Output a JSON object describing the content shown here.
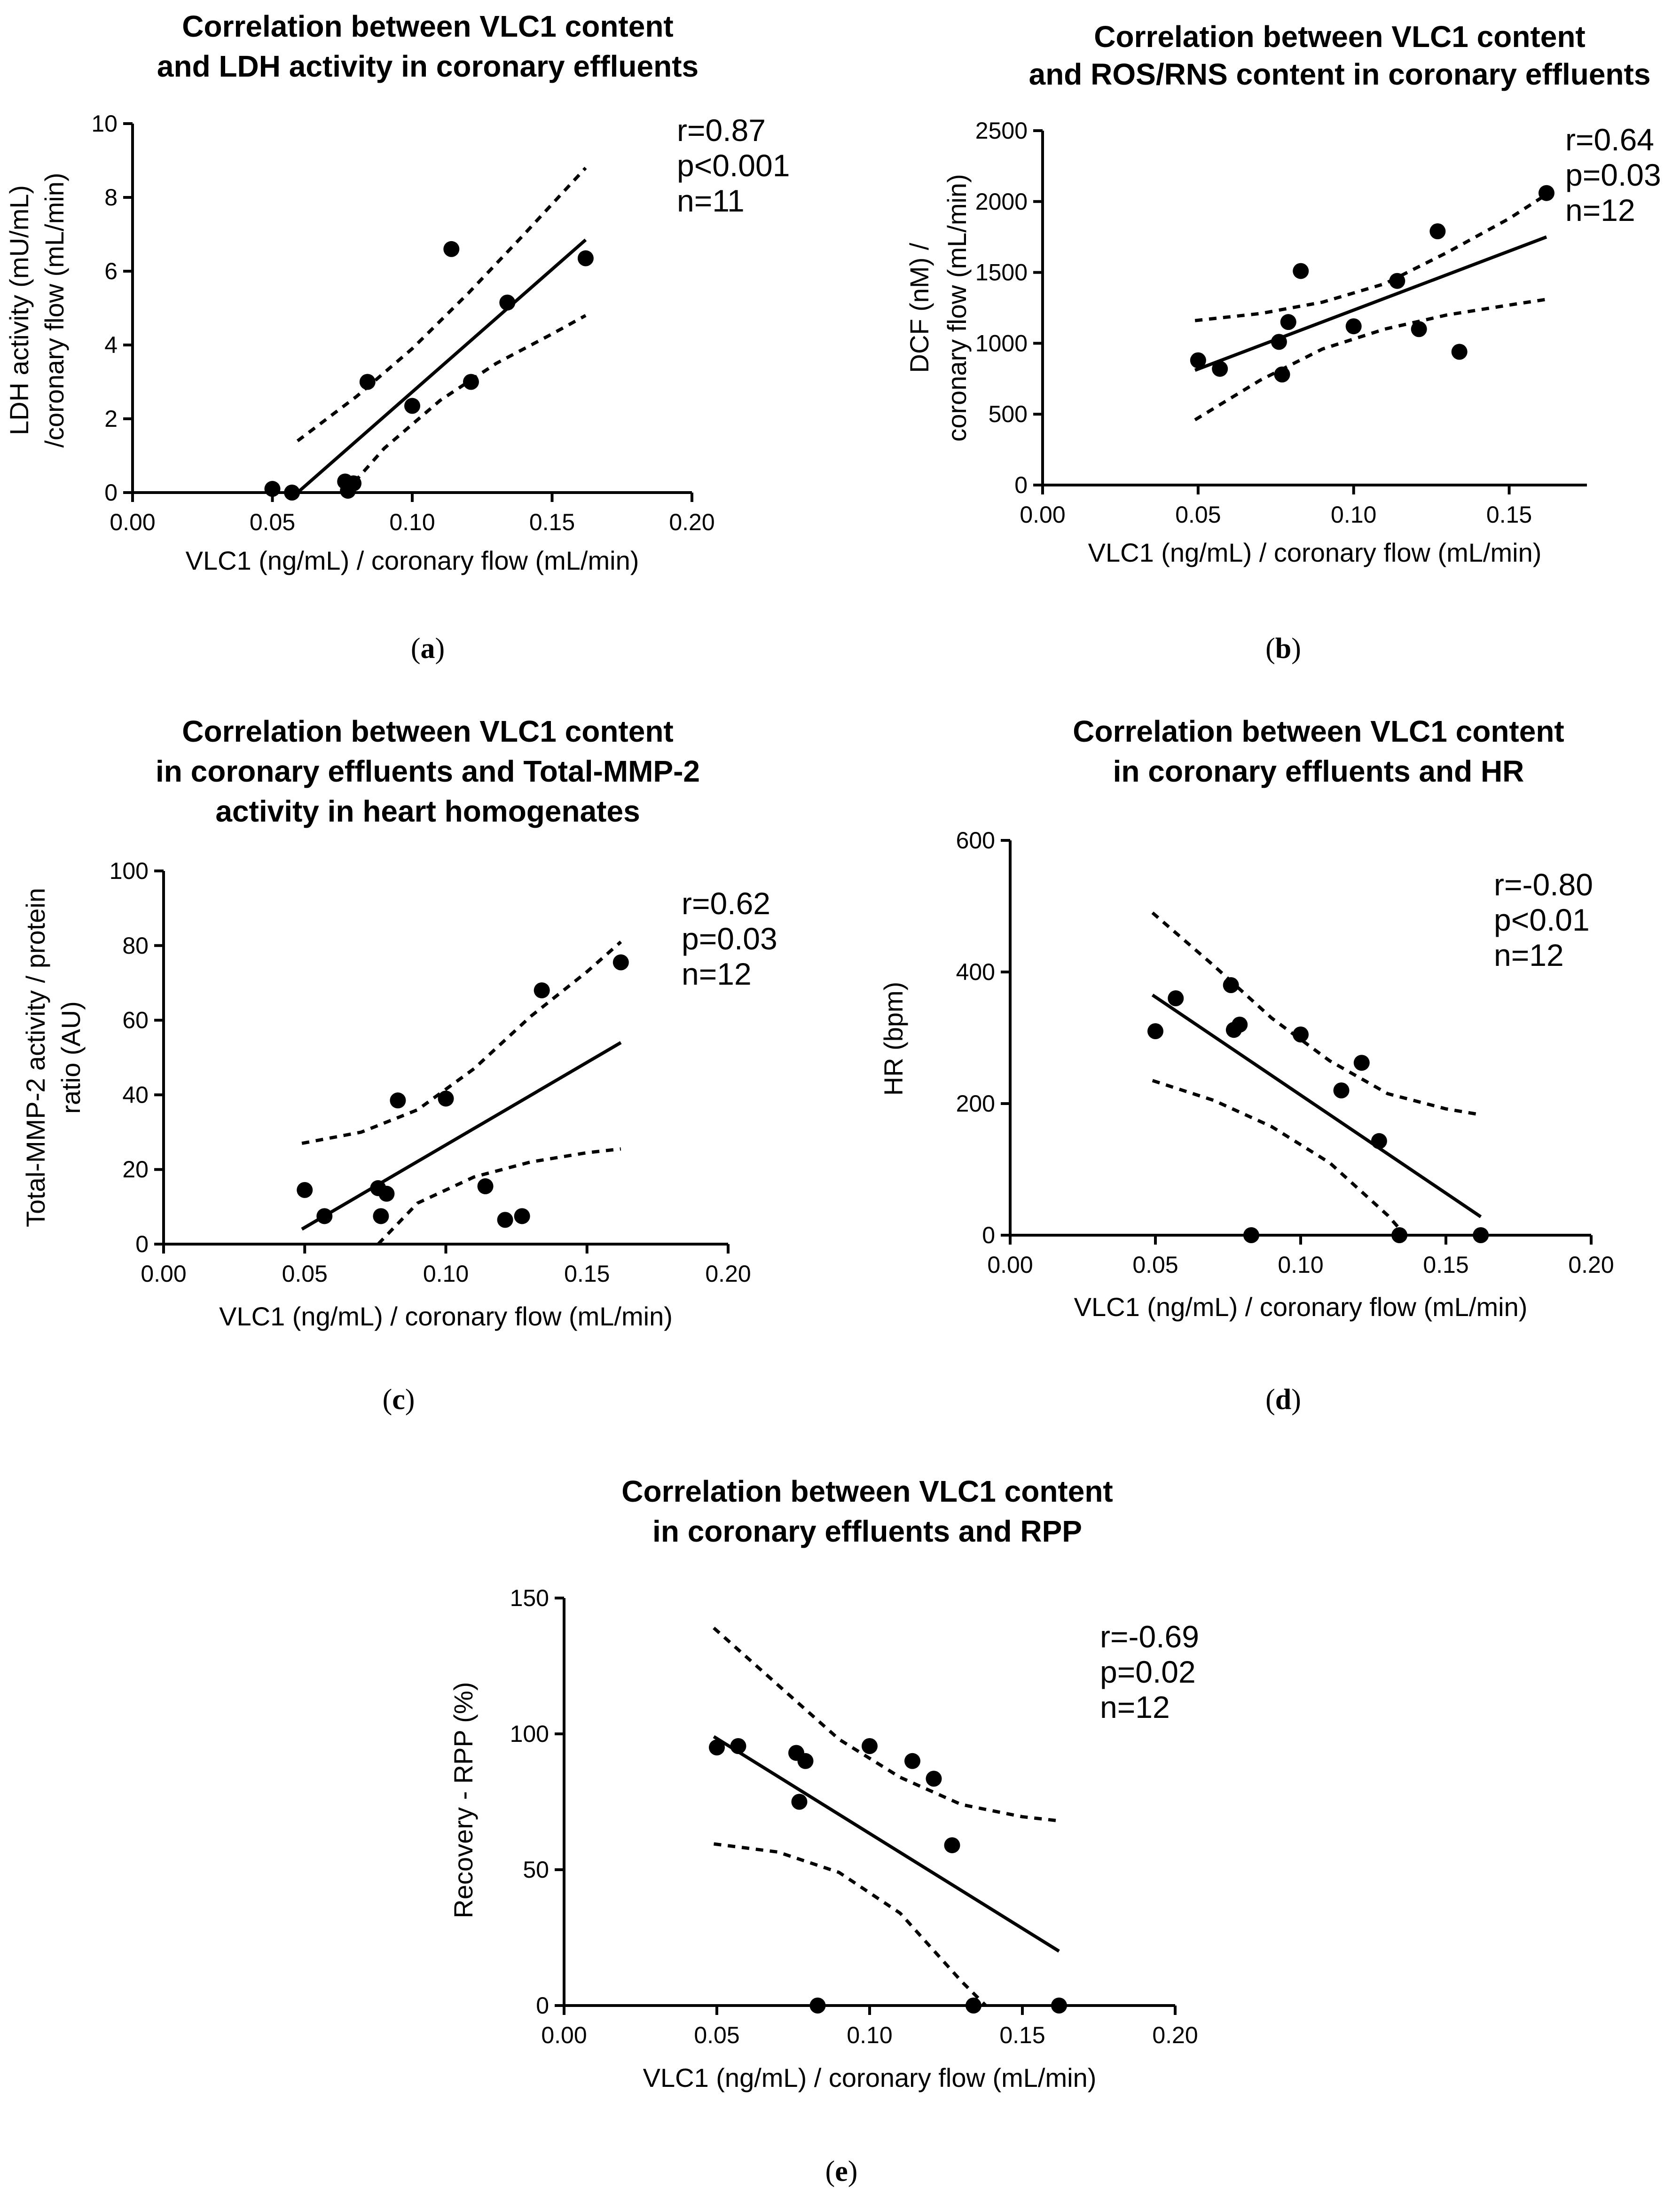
{
  "chart_data": [
    {
      "id": "a",
      "type": "scatter",
      "caption_letter": "a",
      "title_lines": [
        "Correlation between VLC1 content",
        "and LDH activity in coronary effluents"
      ],
      "xlabel": "VLC1 (ng/mL) / coronary flow (mL/min)",
      "ylabel_lines": [
        "LDH activity (mU/mL)",
        "/coronary flow (mL/min)"
      ],
      "xlim": [
        0,
        0.2
      ],
      "ylim": [
        0,
        10
      ],
      "xticks": [
        0,
        0.05,
        0.1,
        0.15,
        0.2
      ],
      "xtick_labels": [
        "0.00",
        "0.05",
        "0.10",
        "0.15",
        "0.20"
      ],
      "yticks": [
        0,
        2,
        4,
        6,
        8,
        10
      ],
      "ytick_labels": [
        "0",
        "2",
        "4",
        "6",
        "8",
        "10"
      ],
      "stats": [
        "r=0.87",
        "p<0.001",
        "n=11"
      ],
      "points": [
        [
          0.05,
          0.1
        ],
        [
          0.057,
          0.0
        ],
        [
          0.076,
          0.3
        ],
        [
          0.077,
          0.05
        ],
        [
          0.079,
          0.25
        ],
        [
          0.084,
          3.0
        ],
        [
          0.1,
          2.35
        ],
        [
          0.114,
          6.6
        ],
        [
          0.121,
          3.0
        ],
        [
          0.134,
          5.15
        ],
        [
          0.162,
          6.35
        ]
      ],
      "fit_line": [
        [
          0.059,
          0.0
        ],
        [
          0.162,
          6.85
        ]
      ],
      "ci_upper": [
        [
          0.059,
          1.4
        ],
        [
          0.08,
          2.6
        ],
        [
          0.1,
          3.9
        ],
        [
          0.12,
          5.4
        ],
        [
          0.14,
          7.0
        ],
        [
          0.162,
          8.8
        ]
      ],
      "ci_lower": [
        [
          0.076,
          0.0
        ],
        [
          0.09,
          1.2
        ],
        [
          0.11,
          2.5
        ],
        [
          0.13,
          3.5
        ],
        [
          0.15,
          4.3
        ],
        [
          0.162,
          4.8
        ]
      ]
    },
    {
      "id": "b",
      "type": "scatter",
      "caption_letter": "b",
      "title_lines": [
        "Correlation between VLC1 content",
        "and ROS/RNS content in coronary effluents"
      ],
      "xlabel": "VLC1 (ng/mL) / coronary flow (mL/min)",
      "ylabel_lines": [
        "DCF (nM) /",
        "coronary flow (mL/min)"
      ],
      "xlim": [
        0,
        0.175
      ],
      "ylim": [
        0,
        2500
      ],
      "xticks": [
        0,
        0.05,
        0.1,
        0.15
      ],
      "xtick_labels": [
        "0.00",
        "0.05",
        "0.10",
        "0.15"
      ],
      "yticks": [
        0,
        500,
        1000,
        1500,
        2000,
        2500
      ],
      "ytick_labels": [
        "0",
        "500",
        "1000",
        "1500",
        "2000",
        "2500"
      ],
      "stats": [
        "r=0.64",
        "p=0.03",
        "n=12"
      ],
      "points": [
        [
          0.05,
          880
        ],
        [
          0.057,
          820
        ],
        [
          0.076,
          1010
        ],
        [
          0.077,
          780
        ],
        [
          0.079,
          1150
        ],
        [
          0.083,
          1510
        ],
        [
          0.1,
          1120
        ],
        [
          0.114,
          1440
        ],
        [
          0.121,
          1100
        ],
        [
          0.127,
          1790
        ],
        [
          0.134,
          940
        ],
        [
          0.162,
          2060
        ]
      ],
      "fit_line": [
        [
          0.049,
          810
        ],
        [
          0.162,
          1750
        ]
      ],
      "ci_upper": [
        [
          0.049,
          1160
        ],
        [
          0.07,
          1210
        ],
        [
          0.09,
          1290
        ],
        [
          0.11,
          1420
        ],
        [
          0.13,
          1640
        ],
        [
          0.15,
          1880
        ],
        [
          0.162,
          2050
        ]
      ],
      "ci_lower": [
        [
          0.049,
          460
        ],
        [
          0.07,
          740
        ],
        [
          0.09,
          960
        ],
        [
          0.11,
          1100
        ],
        [
          0.13,
          1200
        ],
        [
          0.15,
          1270
        ],
        [
          0.162,
          1310
        ]
      ]
    },
    {
      "id": "c",
      "type": "scatter",
      "caption_letter": "c",
      "title_lines": [
        "Correlation between VLC1 content",
        "in coronary effluents and Total-MMP-2",
        "activity in heart homogenates"
      ],
      "xlabel": "VLC1 (ng/mL) / coronary flow (mL/min)",
      "ylabel_lines": [
        "Total-MMP-2 activity / protein",
        "ratio (AU)"
      ],
      "xlim": [
        0,
        0.2
      ],
      "ylim": [
        0,
        100
      ],
      "xticks": [
        0,
        0.05,
        0.1,
        0.15,
        0.2
      ],
      "xtick_labels": [
        "0.00",
        "0.05",
        "0.10",
        "0.15",
        "0.20"
      ],
      "yticks": [
        0,
        20,
        40,
        60,
        80,
        100
      ],
      "ytick_labels": [
        "0",
        "20",
        "40",
        "60",
        "80",
        "100"
      ],
      "stats": [
        "r=0.62",
        "p=0.03",
        "n=12"
      ],
      "points": [
        [
          0.05,
          14.5
        ],
        [
          0.057,
          7.5
        ],
        [
          0.076,
          15
        ],
        [
          0.077,
          7.5
        ],
        [
          0.079,
          13.5
        ],
        [
          0.083,
          38.5
        ],
        [
          0.1,
          39
        ],
        [
          0.114,
          15.5
        ],
        [
          0.121,
          6.5
        ],
        [
          0.127,
          7.5
        ],
        [
          0.134,
          68
        ],
        [
          0.162,
          75.5
        ]
      ],
      "fit_line": [
        [
          0.049,
          4
        ],
        [
          0.162,
          54
        ]
      ],
      "ci_upper": [
        [
          0.049,
          27
        ],
        [
          0.07,
          30
        ],
        [
          0.09,
          36
        ],
        [
          0.11,
          47
        ],
        [
          0.13,
          61
        ],
        [
          0.15,
          73
        ],
        [
          0.162,
          81
        ]
      ],
      "ci_lower": [
        [
          0.076,
          0
        ],
        [
          0.09,
          11
        ],
        [
          0.11,
          18
        ],
        [
          0.13,
          22
        ],
        [
          0.15,
          24.5
        ],
        [
          0.162,
          25.5
        ]
      ]
    },
    {
      "id": "d",
      "type": "scatter",
      "caption_letter": "d",
      "title_lines": [
        "Correlation between VLC1 content",
        "in coronary effluents and HR"
      ],
      "xlabel": "VLC1 (ng/mL) / coronary flow (mL/min)",
      "ylabel_lines": [
        "HR (bpm)"
      ],
      "xlim": [
        0,
        0.2
      ],
      "ylim": [
        0,
        600
      ],
      "xticks": [
        0,
        0.05,
        0.1,
        0.15,
        0.2
      ],
      "xtick_labels": [
        "0.00",
        "0.05",
        "0.10",
        "0.15",
        "0.20"
      ],
      "yticks": [
        0,
        200,
        400,
        600
      ],
      "ytick_labels": [
        "0",
        "200",
        "400",
        "600"
      ],
      "stats": [
        "r=-0.80",
        "p<0.01",
        "n=12"
      ],
      "points": [
        [
          0.05,
          310
        ],
        [
          0.057,
          360
        ],
        [
          0.076,
          380
        ],
        [
          0.077,
          312
        ],
        [
          0.079,
          320
        ],
        [
          0.083,
          0
        ],
        [
          0.1,
          305
        ],
        [
          0.114,
          220
        ],
        [
          0.121,
          262
        ],
        [
          0.127,
          143
        ],
        [
          0.134,
          0
        ],
        [
          0.162,
          0
        ]
      ],
      "fit_line": [
        [
          0.049,
          365
        ],
        [
          0.162,
          28
        ]
      ],
      "ci_upper": [
        [
          0.049,
          490
        ],
        [
          0.07,
          410
        ],
        [
          0.09,
          330
        ],
        [
          0.11,
          265
        ],
        [
          0.13,
          215
        ],
        [
          0.15,
          192
        ],
        [
          0.162,
          183
        ]
      ],
      "ci_lower": [
        [
          0.049,
          235
        ],
        [
          0.07,
          205
        ],
        [
          0.09,
          165
        ],
        [
          0.11,
          110
        ],
        [
          0.13,
          30
        ],
        [
          0.136,
          0
        ]
      ]
    },
    {
      "id": "e",
      "type": "scatter",
      "caption_letter": "e",
      "title_lines": [
        "Correlation between VLC1 content",
        "in coronary effluents and RPP"
      ],
      "xlabel": "VLC1 (ng/mL) / coronary flow (mL/min)",
      "ylabel_lines": [
        "Recovery - RPP (%)"
      ],
      "xlim": [
        0,
        0.2
      ],
      "ylim": [
        0,
        150
      ],
      "xticks": [
        0,
        0.05,
        0.1,
        0.15,
        0.2
      ],
      "xtick_labels": [
        "0.00",
        "0.05",
        "0.10",
        "0.15",
        "0.20"
      ],
      "yticks": [
        0,
        50,
        100,
        150
      ],
      "ytick_labels": [
        "0",
        "50",
        "100",
        "150"
      ],
      "stats": [
        "r=-0.69",
        "p=0.02",
        "n=12"
      ],
      "points": [
        [
          0.05,
          95
        ],
        [
          0.057,
          95.5
        ],
        [
          0.076,
          93
        ],
        [
          0.077,
          75
        ],
        [
          0.079,
          90
        ],
        [
          0.083,
          0
        ],
        [
          0.1,
          95.5
        ],
        [
          0.114,
          90
        ],
        [
          0.121,
          83.5
        ],
        [
          0.127,
          59
        ],
        [
          0.134,
          0
        ],
        [
          0.162,
          0
        ]
      ],
      "fit_line": [
        [
          0.049,
          99
        ],
        [
          0.162,
          20
        ]
      ],
      "ci_upper": [
        [
          0.049,
          139
        ],
        [
          0.07,
          118
        ],
        [
          0.09,
          98
        ],
        [
          0.11,
          84
        ],
        [
          0.13,
          74
        ],
        [
          0.15,
          69.5
        ],
        [
          0.162,
          68
        ]
      ],
      "ci_lower": [
        [
          0.049,
          59.5
        ],
        [
          0.07,
          56.5
        ],
        [
          0.09,
          49
        ],
        [
          0.11,
          34
        ],
        [
          0.13,
          9
        ],
        [
          0.138,
          0
        ]
      ]
    }
  ]
}
